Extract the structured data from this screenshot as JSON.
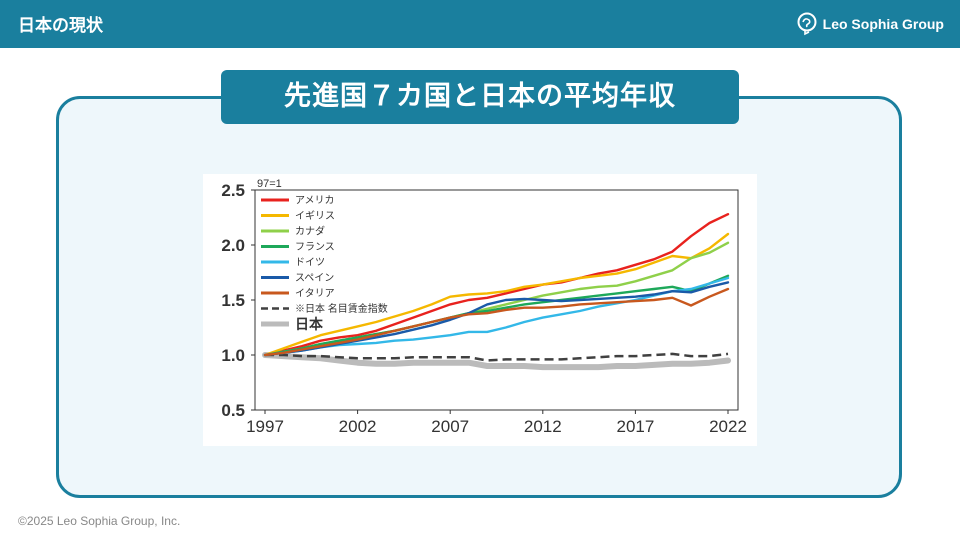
{
  "header": {
    "title": "日本の現状",
    "logo_text": "Leo Sophia Group",
    "bar_color": "#1a7f9e"
  },
  "slide": {
    "heading": "先進国７カ国と日本の平均年収"
  },
  "footer": {
    "copyright": "©2025 Leo Sophia Group, Inc."
  },
  "chart_data": {
    "type": "line",
    "note": "97=1",
    "x": [
      1997,
      1998,
      1999,
      2000,
      2001,
      2002,
      2003,
      2004,
      2005,
      2006,
      2007,
      2008,
      2009,
      2010,
      2011,
      2012,
      2013,
      2014,
      2015,
      2016,
      2017,
      2018,
      2019,
      2020,
      2021,
      2022
    ],
    "xticks": [
      "1997",
      "2002",
      "2007",
      "2012",
      "2017",
      "2022"
    ],
    "yticks": [
      "0.5",
      "1.0",
      "1.5",
      "2.0",
      "2.5"
    ],
    "ylim": [
      0.5,
      2.5
    ],
    "legend_position": "top-left",
    "series": [
      {
        "name": "アメリカ",
        "color": "#e8221e",
        "style": "solid",
        "values": [
          1.0,
          1.04,
          1.08,
          1.13,
          1.16,
          1.18,
          1.22,
          1.28,
          1.34,
          1.4,
          1.46,
          1.5,
          1.52,
          1.56,
          1.6,
          1.64,
          1.66,
          1.7,
          1.74,
          1.77,
          1.82,
          1.87,
          1.94,
          2.08,
          2.2,
          2.28
        ]
      },
      {
        "name": "イギリス",
        "color": "#f5b800",
        "style": "solid",
        "values": [
          1.0,
          1.06,
          1.12,
          1.18,
          1.22,
          1.26,
          1.3,
          1.35,
          1.4,
          1.46,
          1.53,
          1.55,
          1.56,
          1.58,
          1.62,
          1.64,
          1.67,
          1.7,
          1.72,
          1.74,
          1.78,
          1.84,
          1.9,
          1.88,
          1.97,
          2.1
        ]
      },
      {
        "name": "カナダ",
        "color": "#8fd04a",
        "style": "solid",
        "values": [
          1.0,
          1.03,
          1.06,
          1.1,
          1.13,
          1.16,
          1.19,
          1.22,
          1.26,
          1.3,
          1.34,
          1.38,
          1.42,
          1.46,
          1.5,
          1.54,
          1.57,
          1.6,
          1.62,
          1.63,
          1.67,
          1.72,
          1.77,
          1.88,
          1.93,
          2.02
        ]
      },
      {
        "name": "フランス",
        "color": "#1ea85a",
        "style": "solid",
        "values": [
          1.0,
          1.03,
          1.06,
          1.1,
          1.13,
          1.16,
          1.19,
          1.22,
          1.26,
          1.3,
          1.34,
          1.38,
          1.4,
          1.43,
          1.46,
          1.48,
          1.5,
          1.52,
          1.54,
          1.56,
          1.58,
          1.6,
          1.62,
          1.58,
          1.65,
          1.72
        ]
      },
      {
        "name": "ドイツ",
        "color": "#33b8e8",
        "style": "solid",
        "values": [
          1.0,
          1.02,
          1.04,
          1.07,
          1.09,
          1.1,
          1.11,
          1.13,
          1.14,
          1.16,
          1.18,
          1.21,
          1.21,
          1.25,
          1.3,
          1.34,
          1.37,
          1.4,
          1.44,
          1.47,
          1.5,
          1.54,
          1.58,
          1.6,
          1.65,
          1.7
        ]
      },
      {
        "name": "スペイン",
        "color": "#1a5aa8",
        "style": "solid",
        "values": [
          1.0,
          1.02,
          1.04,
          1.07,
          1.1,
          1.13,
          1.16,
          1.19,
          1.23,
          1.27,
          1.32,
          1.38,
          1.46,
          1.5,
          1.51,
          1.5,
          1.49,
          1.5,
          1.51,
          1.52,
          1.53,
          1.55,
          1.58,
          1.57,
          1.62,
          1.66
        ]
      },
      {
        "name": "イタリア",
        "color": "#c8581e",
        "style": "solid",
        "values": [
          1.0,
          1.02,
          1.05,
          1.08,
          1.11,
          1.14,
          1.18,
          1.22,
          1.26,
          1.3,
          1.34,
          1.37,
          1.38,
          1.41,
          1.43,
          1.43,
          1.44,
          1.46,
          1.47,
          1.48,
          1.49,
          1.5,
          1.52,
          1.45,
          1.53,
          1.6
        ]
      },
      {
        "name": "※日本 名目賃金指数",
        "color": "#404040",
        "style": "dashed",
        "values": [
          1.0,
          1.0,
          0.99,
          0.99,
          0.98,
          0.97,
          0.97,
          0.97,
          0.98,
          0.98,
          0.98,
          0.98,
          0.95,
          0.96,
          0.96,
          0.96,
          0.96,
          0.97,
          0.98,
          0.99,
          0.99,
          1.0,
          1.01,
          0.99,
          0.99,
          1.01
        ]
      },
      {
        "name": "日本",
        "color": "#bbbbbb",
        "style": "thick",
        "values": [
          1.0,
          0.99,
          0.98,
          0.97,
          0.95,
          0.93,
          0.92,
          0.92,
          0.93,
          0.93,
          0.93,
          0.93,
          0.9,
          0.9,
          0.9,
          0.89,
          0.89,
          0.89,
          0.89,
          0.9,
          0.9,
          0.91,
          0.92,
          0.92,
          0.93,
          0.95
        ]
      }
    ]
  }
}
